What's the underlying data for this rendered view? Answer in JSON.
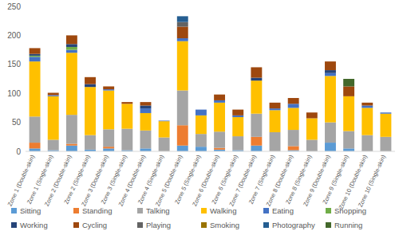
{
  "chart_data": {
    "type": "bar",
    "stacked": true,
    "grid": false,
    "legend": "bottom",
    "categories": [
      "Zone 1 (Double-skin)",
      "Zone 1 (Single-skin)",
      "Zone 2 (Double-skin)",
      "Zone 2 (Single-skin)",
      "Zone 3 (Double-skin)",
      "Zone 3 (Single-skin)",
      "Zone 4 (Double-skin)",
      "Zone 4 (Single-skin)",
      "Zone 5 (Double-skin)",
      "Zone 5 (Single-skin)",
      "Zone 6 (Double-skin)",
      "Zone 6 (Single-skin)",
      "Zone 7 (Double-skin)",
      "Zone 7 (Single-skin)",
      "Zone 8 (Double-skin)",
      "Zone 8 (Single-skin)",
      "Zone 9 (Double-skin)",
      "Zone 9 (Single-skin)",
      "Zone 10 (Double-skin)",
      "Zone 10 (Single-skin)"
    ],
    "series": [
      {
        "name": "Sitting",
        "color": "#5b9bd5",
        "values": [
          5,
          2,
          10,
          3,
          5,
          2,
          5,
          0,
          10,
          8,
          3,
          2,
          10,
          0,
          2,
          0,
          15,
          5,
          0,
          0
        ]
      },
      {
        "name": "Standing",
        "color": "#ed7d31",
        "values": [
          10,
          0,
          3,
          0,
          3,
          0,
          0,
          0,
          35,
          0,
          3,
          0,
          15,
          0,
          7,
          0,
          0,
          0,
          0,
          0
        ]
      },
      {
        "name": "Talking",
        "color": "#a5a5a5",
        "values": [
          45,
          18,
          50,
          25,
          30,
          37,
          31,
          24,
          60,
          22,
          28,
          24,
          40,
          33,
          28,
          20,
          35,
          30,
          28,
          25
        ]
      },
      {
        "name": "Walking",
        "color": "#ffc000",
        "values": [
          95,
          75,
          107,
          83,
          67,
          43,
          30,
          28,
          85,
          32,
          50,
          33,
          57,
          38,
          38,
          37,
          80,
          60,
          47,
          40
        ]
      },
      {
        "name": "Eating",
        "color": "#4472c4",
        "values": [
          8,
          2,
          5,
          0,
          2,
          0,
          8,
          1,
          5,
          10,
          4,
          3,
          0,
          3,
          7,
          0,
          5,
          0,
          4,
          2
        ]
      },
      {
        "name": "Shopping",
        "color": "#70ad47",
        "values": [
          2,
          0,
          5,
          0,
          0,
          0,
          0,
          0,
          0,
          0,
          0,
          0,
          0,
          0,
          0,
          0,
          0,
          0,
          0,
          0
        ]
      },
      {
        "name": "Working",
        "color": "#264478",
        "values": [
          3,
          0,
          5,
          5,
          0,
          0,
          5,
          0,
          0,
          0,
          0,
          0,
          5,
          0,
          0,
          0,
          5,
          0,
          0,
          0
        ]
      },
      {
        "name": "Cycling",
        "color": "#9e480e",
        "values": [
          10,
          4,
          15,
          12,
          5,
          3,
          6,
          0,
          20,
          0,
          10,
          10,
          18,
          10,
          10,
          10,
          15,
          17,
          5,
          0
        ]
      },
      {
        "name": "Playing",
        "color": "#636363",
        "values": [
          0,
          0,
          0,
          0,
          0,
          0,
          0,
          0,
          8,
          0,
          0,
          0,
          0,
          0,
          0,
          0,
          0,
          0,
          0,
          0
        ]
      },
      {
        "name": "Smoking",
        "color": "#997300",
        "values": [
          0,
          0,
          0,
          0,
          0,
          0,
          0,
          0,
          0,
          0,
          0,
          0,
          0,
          0,
          0,
          0,
          0,
          0,
          0,
          0
        ]
      },
      {
        "name": "Photography",
        "color": "#255e91",
        "values": [
          0,
          0,
          0,
          0,
          0,
          0,
          0,
          0,
          10,
          0,
          0,
          0,
          0,
          0,
          0,
          0,
          0,
          0,
          0,
          0
        ]
      },
      {
        "name": "Running",
        "color": "#43682b",
        "values": [
          0,
          0,
          0,
          0,
          0,
          0,
          0,
          0,
          0,
          0,
          0,
          0,
          0,
          0,
          0,
          0,
          0,
          13,
          0,
          0
        ]
      }
    ],
    "ylim": [
      0,
      250
    ],
    "yticks": [
      0,
      50,
      100,
      150,
      200,
      250
    ]
  }
}
